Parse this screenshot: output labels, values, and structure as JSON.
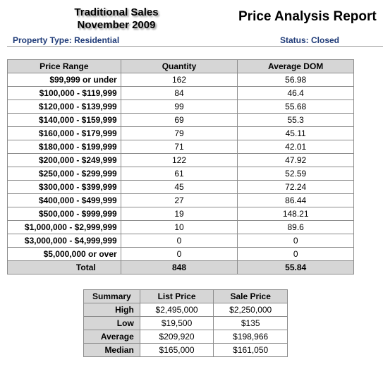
{
  "header": {
    "sales_line1": "Traditional Sales",
    "sales_line2": "November 2009",
    "report_title": "Price Analysis Report",
    "property_type": "Property Type: Residential",
    "status": "Status: Closed"
  },
  "price_table": {
    "columns": [
      "Price Range",
      "Quantity",
      "Average DOM"
    ],
    "rows": [
      {
        "range": "$99,999 or under",
        "quantity": "162",
        "avg_dom": "56.98"
      },
      {
        "range": "$100,000 - $119,999",
        "quantity": "84",
        "avg_dom": "46.4"
      },
      {
        "range": "$120,000 - $139,999",
        "quantity": "99",
        "avg_dom": "55.68"
      },
      {
        "range": "$140,000 - $159,999",
        "quantity": "69",
        "avg_dom": "55.3"
      },
      {
        "range": "$160,000 - $179,999",
        "quantity": "79",
        "avg_dom": "45.11"
      },
      {
        "range": "$180,000 - $199,999",
        "quantity": "71",
        "avg_dom": "42.01"
      },
      {
        "range": "$200,000 - $249,999",
        "quantity": "122",
        "avg_dom": "47.92"
      },
      {
        "range": "$250,000 - $299,999",
        "quantity": "61",
        "avg_dom": "52.59"
      },
      {
        "range": "$300,000 - $399,999",
        "quantity": "45",
        "avg_dom": "72.24"
      },
      {
        "range": "$400,000 - $499,999",
        "quantity": "27",
        "avg_dom": "86.44"
      },
      {
        "range": "$500,000 - $999,999",
        "quantity": "19",
        "avg_dom": "148.21"
      },
      {
        "range": "$1,000,000 - $2,999,999",
        "quantity": "10",
        "avg_dom": "89.6"
      },
      {
        "range": "$3,000,000 - $4,999,999",
        "quantity": "0",
        "avg_dom": "0"
      },
      {
        "range": "$5,000,000 or over",
        "quantity": "0",
        "avg_dom": "0"
      }
    ],
    "total": {
      "label": "Total",
      "quantity": "848",
      "avg_dom": "55.84"
    }
  },
  "summary_table": {
    "columns": [
      "Summary",
      "List Price",
      "Sale Price"
    ],
    "rows": [
      {
        "label": "High",
        "list_price": "$2,495,000",
        "sale_price": "$2,250,000"
      },
      {
        "label": "Low",
        "list_price": "$19,500",
        "sale_price": "$135"
      },
      {
        "label": "Average",
        "list_price": "$209,920",
        "sale_price": "$198,966"
      },
      {
        "label": "Median",
        "list_price": "$165,000",
        "sale_price": "$161,050"
      }
    ]
  }
}
